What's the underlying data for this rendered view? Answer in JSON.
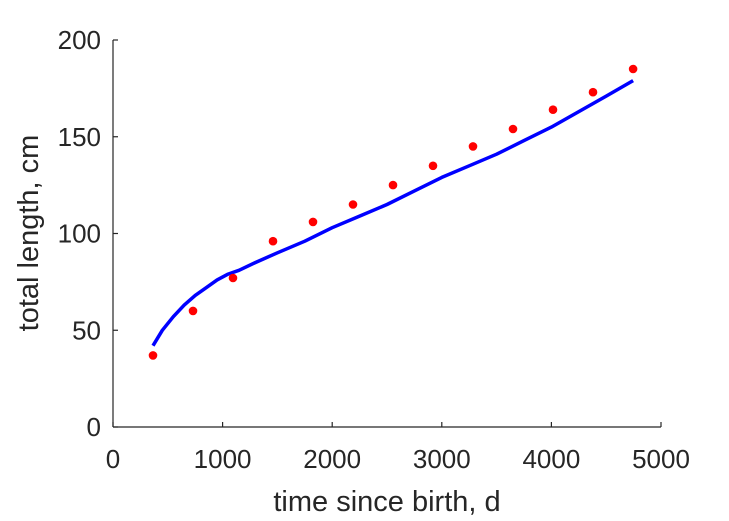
{
  "chart_data": {
    "type": "scatter",
    "title": "",
    "xlabel": "time since birth, d",
    "ylabel": "total length, cm",
    "xlim": [
      0,
      5000
    ],
    "ylim": [
      0,
      200
    ],
    "grid": false,
    "x_ticks": [
      "0",
      "1000",
      "2000",
      "3000",
      "4000",
      "5000"
    ],
    "y_ticks": [
      "0",
      "50",
      "100",
      "150",
      "200"
    ],
    "series": [
      {
        "kind": "points",
        "color": "#ff0000",
        "x": [
          365,
          730,
          1095,
          1460,
          1825,
          2190,
          2555,
          2920,
          3285,
          3650,
          4015,
          4380,
          4745
        ],
        "y": [
          37,
          60,
          77,
          96,
          106,
          115,
          125,
          135,
          145,
          154,
          164,
          173,
          185
        ]
      },
      {
        "kind": "curve",
        "color": "#0000ff",
        "x": [
          365,
          450,
          550,
          650,
          750,
          850,
          950,
          1050,
          1150,
          1300,
          1500,
          1750,
          2000,
          2250,
          2500,
          2750,
          3000,
          3250,
          3500,
          3750,
          4000,
          4250,
          4500,
          4745
        ],
        "y": [
          42,
          50,
          57,
          63,
          68,
          72,
          76,
          79,
          81,
          85,
          90,
          96,
          103,
          109,
          115,
          122,
          129,
          135,
          141,
          148,
          155,
          163,
          171,
          179
        ]
      }
    ]
  }
}
